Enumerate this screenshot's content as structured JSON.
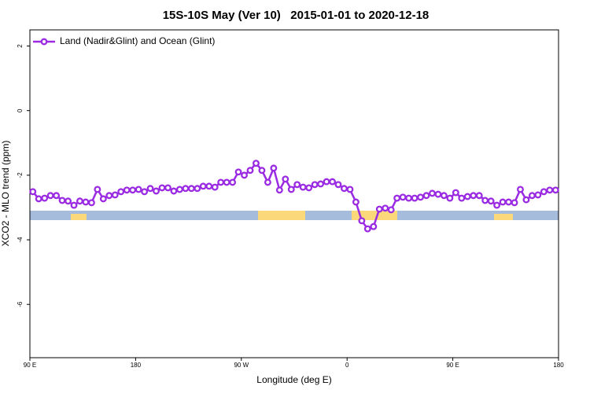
{
  "chart_data": {
    "type": "line",
    "title": "15S-10S May (Ver 10)   2015-01-01 to 2020-12-18",
    "x_label": "Longitude (deg E)",
    "y_label": "XCO2 - MLO trend (ppm)",
    "x": [
      92.5,
      97.5,
      102.5,
      107.5,
      112.5,
      117.5,
      122.5,
      127.5,
      132.5,
      137.5,
      142.5,
      147.5,
      152.5,
      157.5,
      162.5,
      167.5,
      172.5,
      177.5,
      182.5,
      187.5,
      192.5,
      197.5,
      202.5,
      207.5,
      212.5,
      217.5,
      222.5,
      227.5,
      232.5,
      237.5,
      242.5,
      247.5,
      252.5,
      257.5,
      262.5,
      267.5,
      272.5,
      277.5,
      282.5,
      287.5,
      292.5,
      297.5,
      302.5,
      307.5,
      312.5,
      317.5,
      322.5,
      327.5,
      332.5,
      337.5,
      342.5,
      347.5,
      352.5,
      357.5,
      362.5,
      367.5,
      372.5,
      377.5,
      382.5,
      387.5,
      392.5,
      397.5,
      402.5,
      407.5,
      412.5,
      417.5,
      422.5,
      427.5,
      432.5,
      437.5,
      442.5,
      447.5,
      452.5,
      457.5,
      462.5,
      467.5,
      472.5,
      477.5,
      482.5,
      487.5,
      492.5,
      497.5,
      502.5,
      507.5,
      512.5,
      517.5,
      522.5,
      527.5,
      532.5,
      537.5
    ],
    "series": [
      {
        "name": "Land (Nadir&Glint) and Ocean (Glint)",
        "color": "#9a2be2",
        "values": [
          -2.51,
          -2.73,
          -2.71,
          -2.63,
          -2.63,
          -2.78,
          -2.8,
          -2.93,
          -2.8,
          -2.83,
          -2.85,
          -2.44,
          -2.73,
          -2.63,
          -2.61,
          -2.51,
          -2.46,
          -2.46,
          -2.44,
          -2.51,
          -2.41,
          -2.49,
          -2.39,
          -2.39,
          -2.49,
          -2.44,
          -2.41,
          -2.41,
          -2.41,
          -2.34,
          -2.34,
          -2.37,
          -2.22,
          -2.22,
          -2.22,
          -1.9,
          -2.0,
          -1.85,
          -1.63,
          -1.85,
          -2.22,
          -1.78,
          -2.46,
          -2.12,
          -2.44,
          -2.29,
          -2.37,
          -2.39,
          -2.29,
          -2.27,
          -2.2,
          -2.2,
          -2.29,
          -2.41,
          -2.44,
          -2.83,
          -3.41,
          -3.66,
          -3.59,
          -3.05,
          -3.02,
          -3.07,
          -2.71,
          -2.68,
          -2.71,
          -2.71,
          -2.68,
          -2.63,
          -2.56,
          -2.59,
          -2.63,
          -2.71,
          -2.54,
          -2.71,
          -2.66,
          -2.63,
          -2.63,
          -2.78,
          -2.8,
          -2.93,
          -2.83,
          -2.83,
          -2.85,
          -2.44,
          -2.76,
          -2.63,
          -2.61,
          -2.51,
          -2.46,
          -2.46
        ]
      }
    ],
    "xlim": [
      90,
      540
    ],
    "xticks": [
      {
        "value": 90,
        "label": "90 E"
      },
      {
        "value": 180,
        "label": "180"
      },
      {
        "value": 270,
        "label": "90 W"
      },
      {
        "value": 360,
        "label": "0"
      },
      {
        "value": 450,
        "label": "90 E"
      },
      {
        "value": 540,
        "label": "180"
      }
    ],
    "ylim": [
      -7.65,
      2.5
    ],
    "yticks": [
      2,
      0,
      -2,
      -4,
      -6
    ],
    "legend": "top-left"
  }
}
